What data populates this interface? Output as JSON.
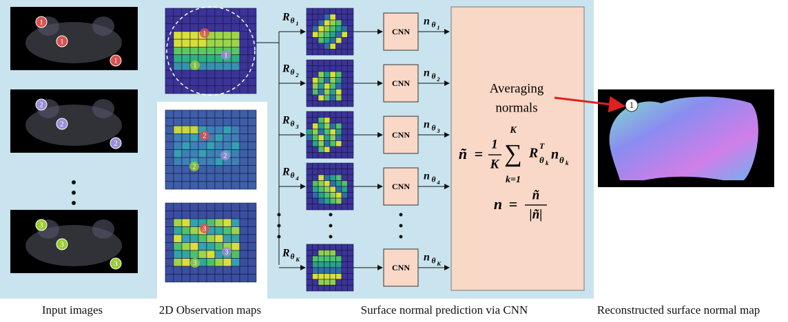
{
  "captions": [
    "Input images",
    "2D Observation maps",
    "Surface normal prediction via CNN",
    "Reconstructed surface normal map"
  ],
  "markers": [
    "1",
    "2",
    "3"
  ],
  "rotations": [
    {
      "base": "R",
      "theta": "θ",
      "index": "1"
    },
    {
      "base": "R",
      "theta": "θ",
      "index": "2"
    },
    {
      "base": "R",
      "theta": "θ",
      "index": "3"
    },
    {
      "base": "R",
      "theta": "θ",
      "index": "4"
    },
    {
      "base": "R",
      "theta": "θ",
      "index": "K"
    }
  ],
  "cnn_label": "CNN",
  "outputs": [
    {
      "base": "n",
      "theta": "θ",
      "index": "1"
    },
    {
      "base": "n",
      "theta": "θ",
      "index": "2"
    },
    {
      "base": "n",
      "theta": "θ",
      "index": "3"
    },
    {
      "base": "n",
      "theta": "θ",
      "index": "4"
    },
    {
      "base": "n",
      "theta": "θ",
      "index": "K"
    }
  ],
  "averaging": [
    "Averaging",
    "normals"
  ],
  "formula": {
    "lhs": "ñ",
    "eq": "=",
    "num": "1",
    "den": "K",
    "sum": "∑",
    "sum_top": "K",
    "sum_bottom": "k=1",
    "rot": "R",
    "rot_sup": "T",
    "rot_sub": "θ",
    "rot_subsub": "k",
    "vec": "n",
    "vec_sub": "θ",
    "vec_subsub": "k"
  },
  "normalize": {
    "lhs": "n",
    "eq": "=",
    "num": "ñ",
    "den": "|ñ|"
  }
}
